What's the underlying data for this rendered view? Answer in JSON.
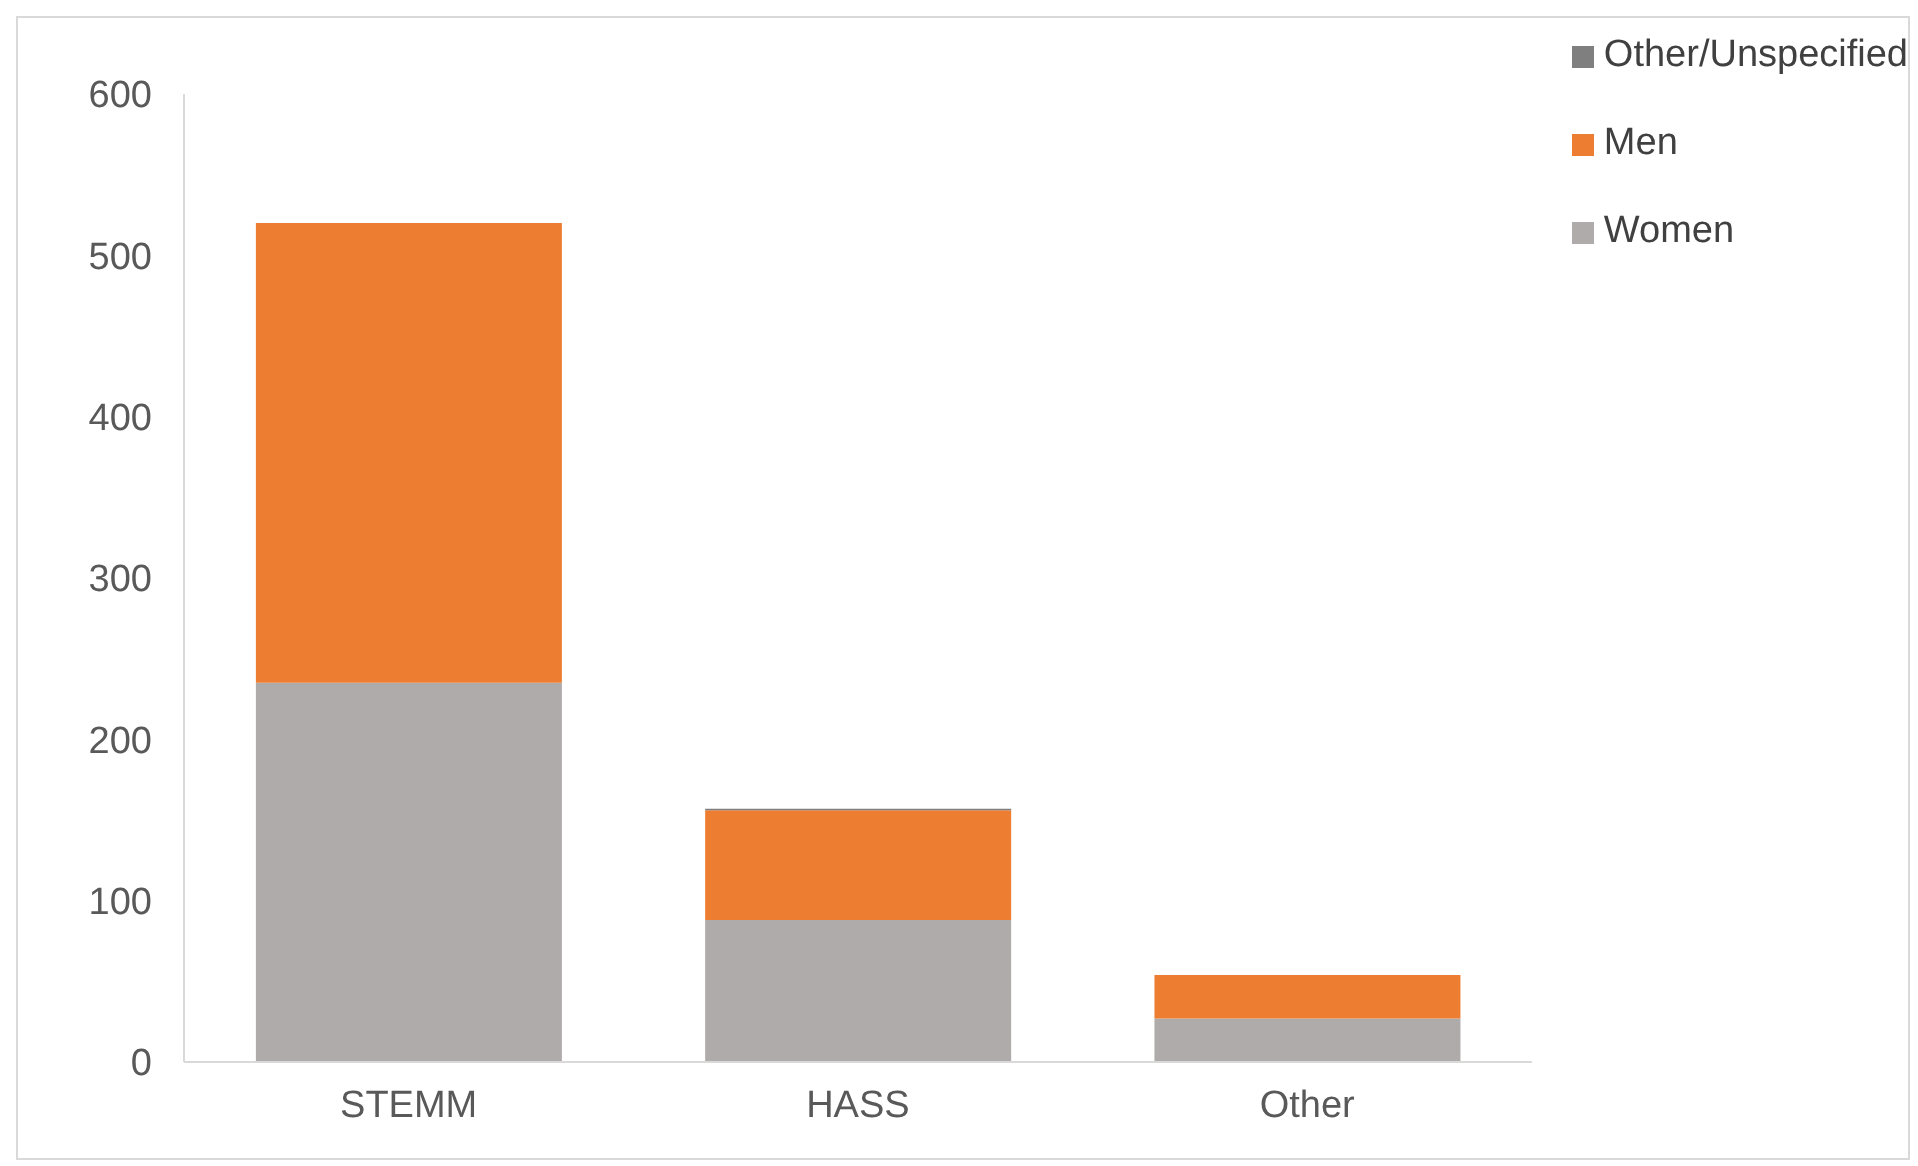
{
  "chart_data": {
    "type": "bar",
    "stacked": true,
    "categories": [
      "STEMM",
      "HASS",
      "Other"
    ],
    "series": [
      {
        "name": "Women",
        "color": "#afabab",
        "values": [
          235,
          88,
          27
        ]
      },
      {
        "name": "Men",
        "color": "#ed7d31",
        "values": [
          285,
          68,
          27
        ]
      },
      {
        "name": "Other/Unspecified",
        "color": "#7f7f7f",
        "values": [
          0,
          1,
          0
        ]
      }
    ],
    "ylim": [
      0,
      600
    ],
    "yticks": [
      0,
      100,
      200,
      300,
      400,
      500,
      600
    ],
    "grid": false,
    "legend": "top right"
  }
}
